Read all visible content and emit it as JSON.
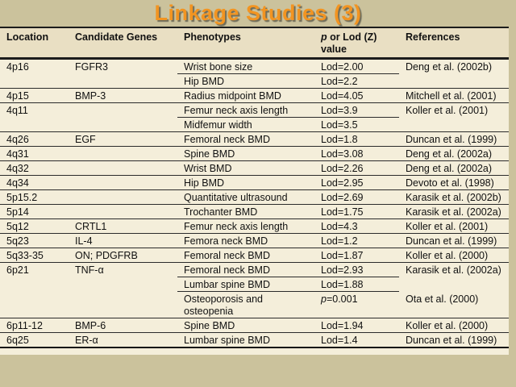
{
  "slide": {
    "title": "Linkage Studies (3)",
    "title_color": "#f29421",
    "background_color": "#cbc29c",
    "table_background_color": "#f4eeda",
    "header_background_color": "#e9dfc3"
  },
  "table": {
    "headers": {
      "location": "Location",
      "genes": "Candidate Genes",
      "phenotypes": "Phenotypes",
      "value_p": "p",
      "value_rest": " or Lod (Z)",
      "value_line2": "value",
      "references": "References"
    },
    "rows": [
      {
        "location": "4p16",
        "genes": "FGFR3",
        "phenotype": "Wrist bone size",
        "value": "Lod=2.00",
        "reference": "Deng et al. (2002b)",
        "sep": "partial"
      },
      {
        "location": "",
        "genes": "",
        "phenotype": "Hip BMD",
        "value": "Lod=2.2",
        "reference": "",
        "sep": "full"
      },
      {
        "location": "4p15",
        "genes": "BMP-3",
        "phenotype": "Radius midpoint BMD",
        "value": "Lod=4.05",
        "reference": "Mitchell et al. (2001)",
        "sep": "full"
      },
      {
        "location": "4q11",
        "genes": "",
        "phenotype": "Femur neck axis length",
        "value": "Lod=3.9",
        "reference": "Koller et al. (2001)",
        "sep": "partial"
      },
      {
        "location": "",
        "genes": "",
        "phenotype": "Midfemur width",
        "value": "Lod=3.5",
        "reference": "",
        "sep": "full"
      },
      {
        "location": "4q26",
        "genes": "EGF",
        "phenotype": "Femoral neck BMD",
        "value": "Lod=1.8",
        "reference": "Duncan et al. (1999)",
        "sep": "full"
      },
      {
        "location": "4q31",
        "genes": "",
        "phenotype": "Spine BMD",
        "value": "Lod=3.08",
        "reference": "Deng et al. (2002a)",
        "sep": "full"
      },
      {
        "location": "4q32",
        "genes": "",
        "phenotype": "Wrist BMD",
        "value": "Lod=2.26",
        "reference": "Deng et al. (2002a)",
        "sep": "full"
      },
      {
        "location": "4q34",
        "genes": "",
        "phenotype": "Hip BMD",
        "value": "Lod=2.95",
        "reference": "Devoto et al. (1998)",
        "sep": "full"
      },
      {
        "location": "5p15.2",
        "genes": "",
        "phenotype": "Quantitative ultrasound",
        "value": "Lod=2.69",
        "reference": "Karasik et al. (2002b)",
        "sep": "full"
      },
      {
        "location": "5p14",
        "genes": "",
        "phenotype": "Trochanter BMD",
        "value": "Lod=1.75",
        "reference": "Karasik et al. (2002a)",
        "sep": "full"
      },
      {
        "location": "5q12",
        "genes": "CRTL1",
        "phenotype": "Femur neck axis length",
        "value": "Lod=4.3",
        "reference": "Koller et al. (2001)",
        "sep": "full"
      },
      {
        "location": "5q23",
        "genes": "IL-4",
        "phenotype": "Femora neck BMD",
        "value": "Lod=1.2",
        "reference": "Duncan et al. (1999)",
        "sep": "full"
      },
      {
        "location": "5q33-35",
        "genes": "ON; PDGFRB",
        "phenotype": "Femoral neck BMD",
        "value": "Lod=1.87",
        "reference": "Koller et al. (2000)",
        "sep": "full"
      },
      {
        "location": "6p21",
        "genes": "TNF-α",
        "phenotype": "Femoral neck BMD",
        "value": "Lod=2.93",
        "reference": "Karasik et al. (2002a)",
        "sep": "partial"
      },
      {
        "location": "",
        "genes": "",
        "phenotype": "Lumbar spine BMD",
        "value": "Lod=1.88",
        "reference": "",
        "sep": "partial"
      },
      {
        "location": "",
        "genes": "",
        "phenotype": "Osteoporosis and",
        "phenotype2": "osteopenia",
        "value": "p=0.001",
        "italic_p": true,
        "reference": "Ota et al. (2000)",
        "sep": "full"
      },
      {
        "location": "6p11-12",
        "genes": "BMP-6",
        "phenotype": "Spine BMD",
        "value": "Lod=1.94",
        "reference": "Koller et al. (2000)",
        "sep": "full"
      },
      {
        "location": "6q25",
        "genes": "ER-α",
        "phenotype": "Lumbar spine BMD",
        "value": "Lod=1.4",
        "reference": "Duncan et al. (1999)",
        "sep": "bottom"
      }
    ]
  }
}
